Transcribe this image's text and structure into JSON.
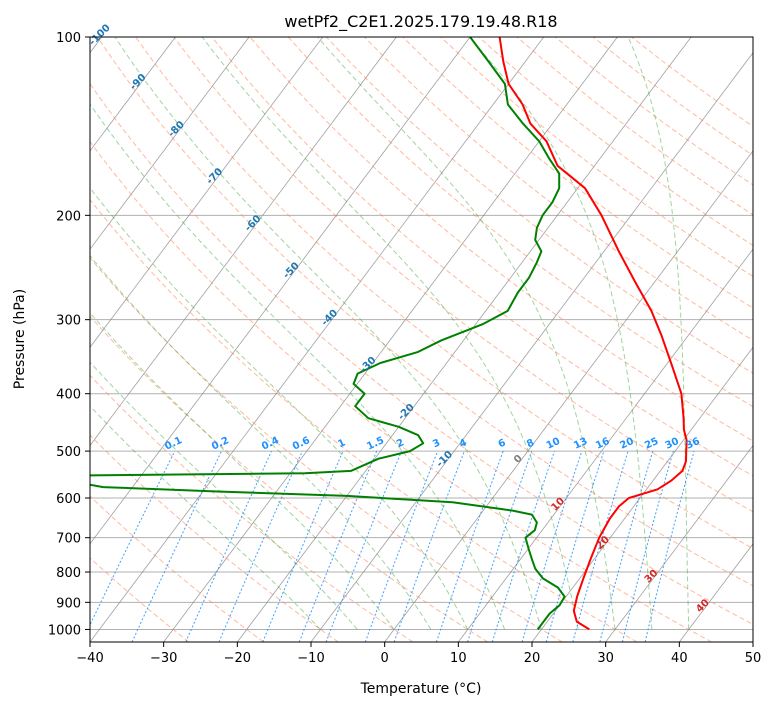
{
  "chart_data": {
    "type": "line",
    "title": "wetPf2_C2E1.2025.179.19.48.R18",
    "xlabel": "Temperature (°C)",
    "ylabel": "Pressure (hPa)",
    "xlim": [
      -40,
      50
    ],
    "ylim": [
      1050,
      100
    ],
    "y_scale": "log",
    "x_ticks": [
      -40,
      -30,
      -20,
      -10,
      0,
      10,
      20,
      30,
      40,
      50
    ],
    "y_ticks": [
      100,
      200,
      300,
      400,
      500,
      600,
      700,
      800,
      900,
      1000
    ],
    "grid": true,
    "skew": "skew-T log-p",
    "colors": {
      "temperature": "#ff0000",
      "dewpoint": "#008000",
      "isotherm": "#808080",
      "dry_adiabat": "#ff7f50",
      "moist_adiabat": "#2ca02c",
      "mixing_ratio": "#1e90ff",
      "isotherm_label": "#1f77b4",
      "warm_label": "#d62728"
    },
    "series": [
      {
        "name": "",
        "color": "#ff0000",
        "points": [
          [
            26.5,
            1000
          ],
          [
            24.0,
            970
          ],
          [
            22.5,
            930
          ],
          [
            21.5,
            880
          ],
          [
            20.5,
            820
          ],
          [
            19.5,
            760
          ],
          [
            18.5,
            700
          ],
          [
            18.0,
            650
          ],
          [
            18.0,
            620
          ],
          [
            18.5,
            600
          ],
          [
            20.0,
            590
          ],
          [
            21.5,
            580
          ],
          [
            22.5,
            560
          ],
          [
            23.0,
            540
          ],
          [
            22.5,
            520
          ],
          [
            21.5,
            500
          ],
          [
            20.5,
            480
          ],
          [
            19.0,
            460
          ],
          [
            17.8,
            440
          ],
          [
            15.0,
            400
          ],
          [
            11.0,
            360
          ],
          [
            6.5,
            320
          ],
          [
            2.5,
            290
          ],
          [
            -2.5,
            260
          ],
          [
            -8.0,
            230
          ],
          [
            -14.0,
            200
          ],
          [
            -19.0,
            180
          ],
          [
            -25.0,
            165
          ],
          [
            -29.0,
            150
          ],
          [
            -33.0,
            140
          ],
          [
            -36.0,
            130
          ],
          [
            -40.0,
            120
          ],
          [
            -43.0,
            110
          ],
          [
            -46.0,
            100
          ]
        ]
      },
      {
        "name": "",
        "color": "#008000",
        "points": [
          [
            19.5,
            1000
          ],
          [
            19.5,
            970
          ],
          [
            19.5,
            940
          ],
          [
            20.0,
            910
          ],
          [
            19.8,
            880
          ],
          [
            18.0,
            850
          ],
          [
            15.0,
            820
          ],
          [
            13.0,
            790
          ],
          [
            11.5,
            760
          ],
          [
            10.0,
            730
          ],
          [
            8.5,
            700
          ],
          [
            9.0,
            680
          ],
          [
            8.5,
            660
          ],
          [
            7.0,
            640
          ],
          [
            4.0,
            630
          ],
          [
            -5.0,
            610
          ],
          [
            -20.0,
            595
          ],
          [
            -38.0,
            585
          ],
          [
            -54.0,
            575
          ],
          [
            -58.0,
            565
          ],
          [
            -60.0,
            550
          ],
          [
            -28.0,
            545
          ],
          [
            -22.0,
            540
          ],
          [
            -21.0,
            530
          ],
          [
            -19.5,
            515
          ],
          [
            -16.0,
            500
          ],
          [
            -15.0,
            485
          ],
          [
            -16.5,
            470
          ],
          [
            -20.0,
            455
          ],
          [
            -25.0,
            440
          ],
          [
            -28.0,
            420
          ],
          [
            -28.0,
            400
          ],
          [
            -30.5,
            385
          ],
          [
            -31.0,
            370
          ],
          [
            -29.0,
            355
          ],
          [
            -25.0,
            340
          ],
          [
            -23.0,
            325
          ],
          [
            -19.0,
            305
          ],
          [
            -17.0,
            290
          ],
          [
            -17.5,
            270
          ],
          [
            -17.5,
            255
          ],
          [
            -18.0,
            240
          ],
          [
            -18.5,
            230
          ],
          [
            -20.5,
            220
          ],
          [
            -21.5,
            210
          ],
          [
            -22.0,
            200
          ],
          [
            -22.0,
            190
          ],
          [
            -22.5,
            180
          ],
          [
            -24.0,
            170
          ],
          [
            -27.0,
            160
          ],
          [
            -30.0,
            150
          ],
          [
            -34.0,
            140
          ],
          [
            -38.0,
            130
          ],
          [
            -40.5,
            120
          ],
          [
            -45.0,
            110
          ],
          [
            -50.0,
            100
          ]
        ]
      }
    ],
    "isotherm_labels": [
      "-100",
      "-90",
      "-80",
      "-70",
      "-60",
      "-50",
      "-40",
      "-30",
      "-20",
      "-10",
      "0",
      "10",
      "20",
      "30",
      "40"
    ],
    "mixing_ratio_labels": [
      "0.1",
      "0.2",
      "0.4",
      "0.6",
      "1",
      "1.5",
      "2",
      "3",
      "4",
      "6",
      "8",
      "10",
      "13",
      "16",
      "20",
      "25",
      "30",
      "36"
    ]
  }
}
